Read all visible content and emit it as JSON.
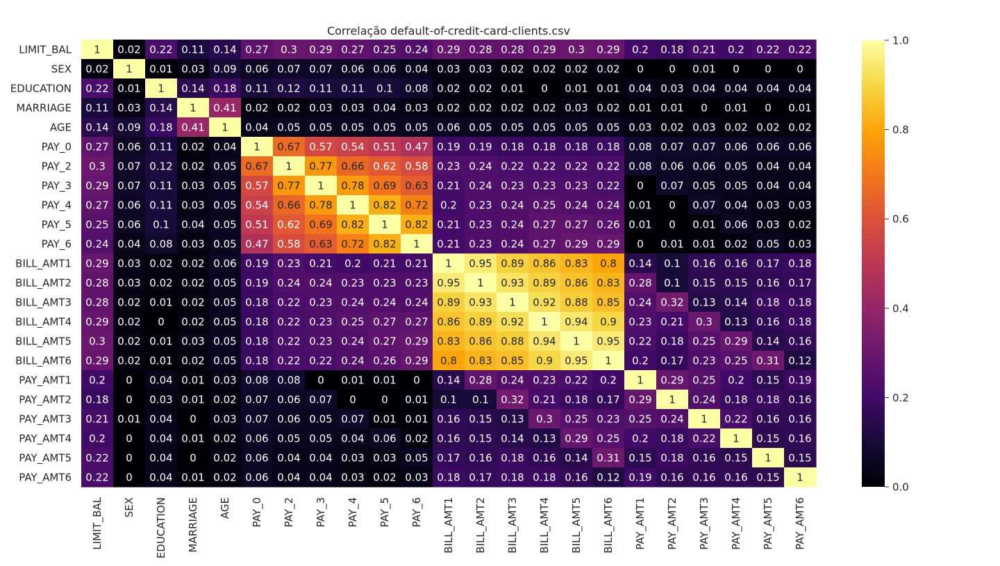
{
  "chart_data": {
    "type": "heatmap",
    "title": "Correlação default-of-credit-card-clients.csv",
    "labels": [
      "LIMIT_BAL",
      "SEX",
      "EDUCATION",
      "MARRIAGE",
      "AGE",
      "PAY_0",
      "PAY_2",
      "PAY_3",
      "PAY_4",
      "PAY_5",
      "PAY_6",
      "BILL_AMT1",
      "BILL_AMT2",
      "BILL_AMT3",
      "BILL_AMT4",
      "BILL_AMT5",
      "BILL_AMT6",
      "PAY_AMT1",
      "PAY_AMT2",
      "PAY_AMT3",
      "PAY_AMT4",
      "PAY_AMT5",
      "PAY_AMT6"
    ],
    "values": [
      [
        1,
        0.02,
        0.22,
        0.11,
        0.14,
        0.27,
        0.3,
        0.29,
        0.27,
        0.25,
        0.24,
        0.29,
        0.28,
        0.28,
        0.29,
        0.3,
        0.29,
        0.2,
        0.18,
        0.21,
        0.2,
        0.22,
        0.22
      ],
      [
        0.02,
        1,
        0.01,
        0.03,
        0.09,
        0.06,
        0.07,
        0.07,
        0.06,
        0.06,
        0.04,
        0.03,
        0.03,
        0.02,
        0.02,
        0.02,
        0.02,
        0,
        0,
        0.01,
        0,
        0,
        0
      ],
      [
        0.22,
        0.01,
        1,
        0.14,
        0.18,
        0.11,
        0.12,
        0.11,
        0.11,
        0.1,
        0.08,
        0.02,
        0.02,
        0.01,
        0,
        0.01,
        0.01,
        0.04,
        0.03,
        0.04,
        0.04,
        0.04,
        0.04
      ],
      [
        0.11,
        0.03,
        0.14,
        1,
        0.41,
        0.02,
        0.02,
        0.03,
        0.03,
        0.04,
        0.03,
        0.02,
        0.02,
        0.02,
        0.02,
        0.03,
        0.02,
        0.01,
        0.01,
        0,
        0.01,
        0,
        0.01
      ],
      [
        0.14,
        0.09,
        0.18,
        0.41,
        1,
        0.04,
        0.05,
        0.05,
        0.05,
        0.05,
        0.05,
        0.06,
        0.05,
        0.05,
        0.05,
        0.05,
        0.05,
        0.03,
        0.02,
        0.03,
        0.02,
        0.02,
        0.02
      ],
      [
        0.27,
        0.06,
        0.11,
        0.02,
        0.04,
        1,
        0.67,
        0.57,
        0.54,
        0.51,
        0.47,
        0.19,
        0.19,
        0.18,
        0.18,
        0.18,
        0.18,
        0.08,
        0.07,
        0.07,
        0.06,
        0.06,
        0.06
      ],
      [
        0.3,
        0.07,
        0.12,
        0.02,
        0.05,
        0.67,
        1,
        0.77,
        0.66,
        0.62,
        0.58,
        0.23,
        0.24,
        0.22,
        0.22,
        0.22,
        0.22,
        0.08,
        0.06,
        0.06,
        0.05,
        0.04,
        0.04
      ],
      [
        0.29,
        0.07,
        0.11,
        0.03,
        0.05,
        0.57,
        0.77,
        1,
        0.78,
        0.69,
        0.63,
        0.21,
        0.24,
        0.23,
        0.23,
        0.23,
        0.22,
        0,
        0.07,
        0.05,
        0.05,
        0.04,
        0.04
      ],
      [
        0.27,
        0.06,
        0.11,
        0.03,
        0.05,
        0.54,
        0.66,
        0.78,
        1,
        0.82,
        0.72,
        0.2,
        0.23,
        0.24,
        0.25,
        0.24,
        0.24,
        0.01,
        0,
        0.07,
        0.04,
        0.03,
        0.03
      ],
      [
        0.25,
        0.06,
        0.1,
        0.04,
        0.05,
        0.51,
        0.62,
        0.69,
        0.82,
        1,
        0.82,
        0.21,
        0.23,
        0.24,
        0.27,
        0.27,
        0.26,
        0.01,
        0,
        0.01,
        0.06,
        0.03,
        0.02
      ],
      [
        0.24,
        0.04,
        0.08,
        0.03,
        0.05,
        0.47,
        0.58,
        0.63,
        0.72,
        0.82,
        1,
        0.21,
        0.23,
        0.24,
        0.27,
        0.29,
        0.29,
        0,
        0.01,
        0.01,
        0.02,
        0.05,
        0.03
      ],
      [
        0.29,
        0.03,
        0.02,
        0.02,
        0.06,
        0.19,
        0.23,
        0.21,
        0.2,
        0.21,
        0.21,
        1,
        0.95,
        0.89,
        0.86,
        0.83,
        0.8,
        0.14,
        0.1,
        0.16,
        0.16,
        0.17,
        0.18
      ],
      [
        0.28,
        0.03,
        0.02,
        0.02,
        0.05,
        0.19,
        0.24,
        0.24,
        0.23,
        0.23,
        0.23,
        0.95,
        1,
        0.93,
        0.89,
        0.86,
        0.83,
        0.28,
        0.1,
        0.15,
        0.15,
        0.16,
        0.17
      ],
      [
        0.28,
        0.02,
        0.01,
        0.02,
        0.05,
        0.18,
        0.22,
        0.23,
        0.24,
        0.24,
        0.24,
        0.89,
        0.93,
        1,
        0.92,
        0.88,
        0.85,
        0.24,
        0.32,
        0.13,
        0.14,
        0.18,
        0.18
      ],
      [
        0.29,
        0.02,
        0,
        0.02,
        0.05,
        0.18,
        0.22,
        0.23,
        0.25,
        0.27,
        0.27,
        0.86,
        0.89,
        0.92,
        1,
        0.94,
        0.9,
        0.23,
        0.21,
        0.3,
        0.13,
        0.16,
        0.18
      ],
      [
        0.3,
        0.02,
        0.01,
        0.03,
        0.05,
        0.18,
        0.22,
        0.23,
        0.24,
        0.27,
        0.29,
        0.83,
        0.86,
        0.88,
        0.94,
        1,
        0.95,
        0.22,
        0.18,
        0.25,
        0.29,
        0.14,
        0.16
      ],
      [
        0.29,
        0.02,
        0.01,
        0.02,
        0.05,
        0.18,
        0.22,
        0.22,
        0.24,
        0.26,
        0.29,
        0.8,
        0.83,
        0.85,
        0.9,
        0.95,
        1,
        0.2,
        0.17,
        0.23,
        0.25,
        0.31,
        0.12
      ],
      [
        0.2,
        0,
        0.04,
        0.01,
        0.03,
        0.08,
        0.08,
        0,
        0.01,
        0.01,
        0,
        0.14,
        0.28,
        0.24,
        0.23,
        0.22,
        0.2,
        1,
        0.29,
        0.25,
        0.2,
        0.15,
        0.19
      ],
      [
        0.18,
        0,
        0.03,
        0.01,
        0.02,
        0.07,
        0.06,
        0.07,
        0,
        0,
        0.01,
        0.1,
        0.1,
        0.32,
        0.21,
        0.18,
        0.17,
        0.29,
        1,
        0.24,
        0.18,
        0.18,
        0.16
      ],
      [
        0.21,
        0.01,
        0.04,
        0,
        0.03,
        0.07,
        0.06,
        0.05,
        0.07,
        0.01,
        0.01,
        0.16,
        0.15,
        0.13,
        0.3,
        0.25,
        0.23,
        0.25,
        0.24,
        1,
        0.22,
        0.16,
        0.16
      ],
      [
        0.2,
        0,
        0.04,
        0.01,
        0.02,
        0.06,
        0.05,
        0.05,
        0.04,
        0.06,
        0.02,
        0.16,
        0.15,
        0.14,
        0.13,
        0.29,
        0.25,
        0.2,
        0.18,
        0.22,
        1,
        0.15,
        0.16
      ],
      [
        0.22,
        0,
        0.04,
        0,
        0.02,
        0.06,
        0.04,
        0.04,
        0.03,
        0.03,
        0.05,
        0.17,
        0.16,
        0.18,
        0.16,
        0.14,
        0.31,
        0.15,
        0.18,
        0.16,
        0.15,
        1,
        0.15
      ],
      [
        0.22,
        0,
        0.04,
        0.01,
        0.02,
        0.06,
        0.04,
        0.04,
        0.03,
        0.02,
        0.03,
        0.18,
        0.17,
        0.18,
        0.18,
        0.16,
        0.12,
        0.19,
        0.16,
        0.16,
        0.16,
        0.15,
        1
      ]
    ],
    "colormap": "inferno",
    "vmin": 0,
    "vmax": 1,
    "colorbar_ticks": [
      0.0,
      0.2,
      0.4,
      0.6,
      0.8,
      1.0
    ],
    "colorbar_tick_labels": [
      "0.0",
      "0.2",
      "0.4",
      "0.6",
      "0.8",
      "1.0"
    ]
  }
}
